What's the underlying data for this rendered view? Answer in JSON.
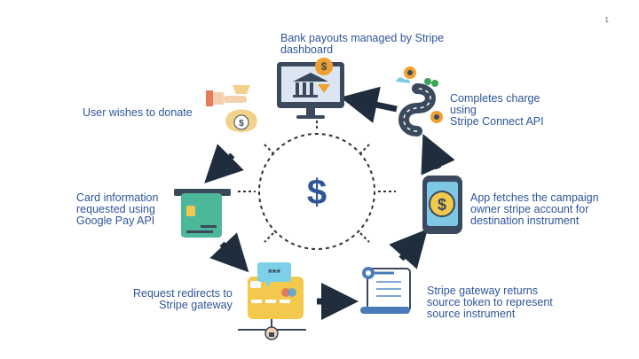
{
  "page_number": "1",
  "center_symbol": "$",
  "steps": {
    "donate": "User wishes to donate",
    "card_info": "Card information\nrequested using\nGoogle Pay API",
    "redirect": "Request redirects to\nStripe gateway",
    "gateway_returns": "Stripe gateway returns\nsource token to represent\nsource instrument",
    "app_fetches": "App fetches the campaign\nowner stripe account for\ndestination instrument",
    "completes": "Completes charge\nusing\nStripe Connect API",
    "payouts": "Bank payouts managed by Stripe\ndashboard"
  },
  "icons": {
    "card_code": "***",
    "dollar": "$"
  },
  "colors": {
    "text": "#2f5597",
    "arrow": "#1f2d3d",
    "dollar": "#2f5597"
  }
}
